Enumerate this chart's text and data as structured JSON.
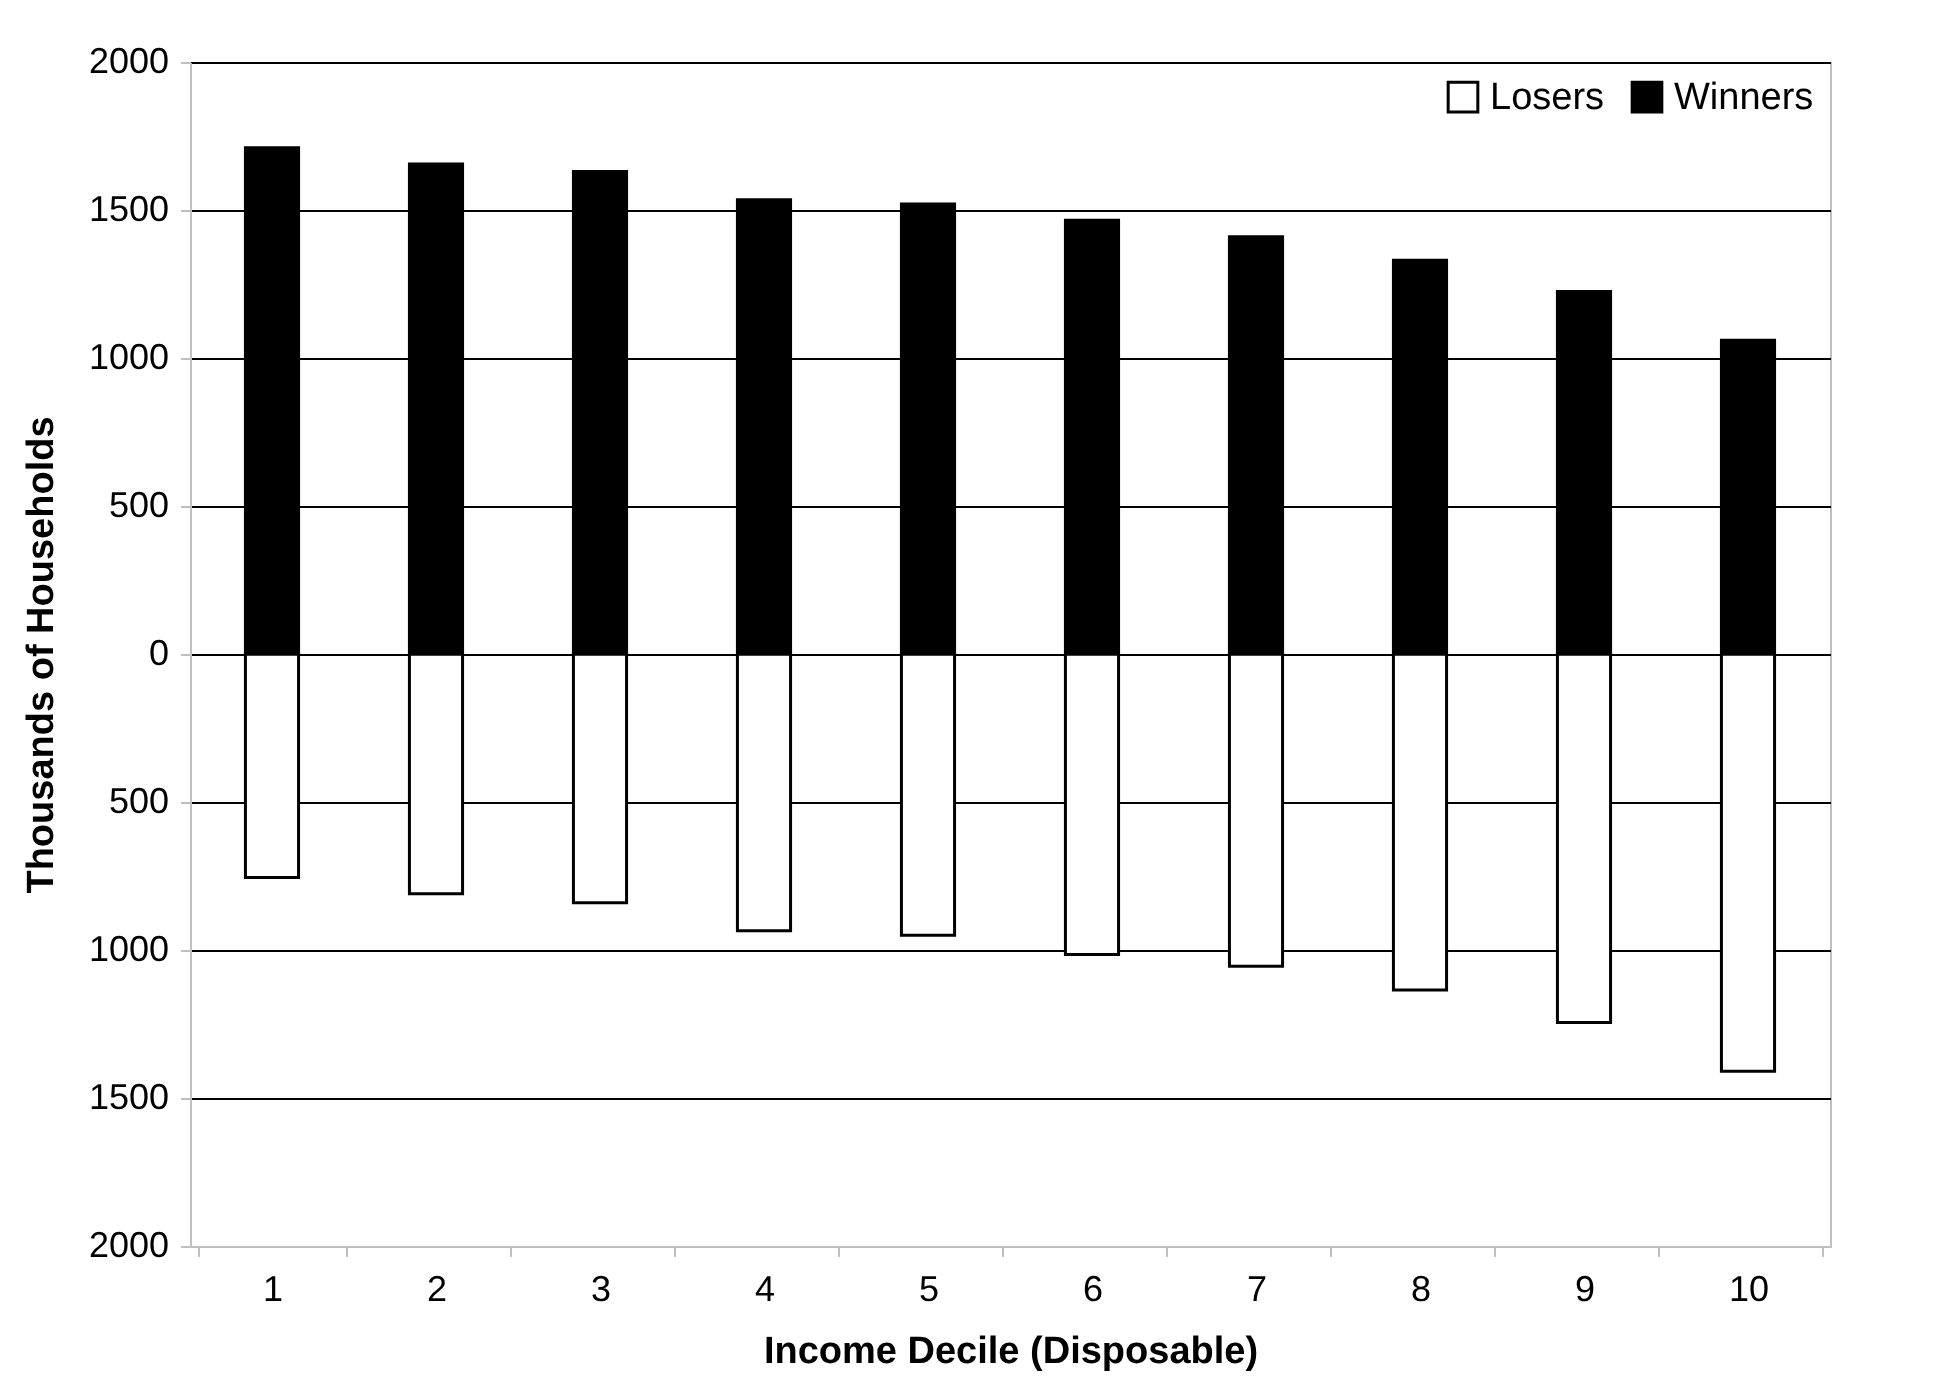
{
  "chart_data": {
    "type": "bar",
    "xlabel": "Income Decile (Disposable)",
    "ylabel": "Thousands of Households",
    "categories": [
      "1",
      "2",
      "3",
      "4",
      "5",
      "6",
      "7",
      "8",
      "9",
      "10"
    ],
    "series": [
      {
        "name": "Losers",
        "color": "#ffffff",
        "values": [
          -755,
          -810,
          -840,
          -935,
          -950,
          -1015,
          -1055,
          -1135,
          -1245,
          -1410
        ]
      },
      {
        "name": "Winners",
        "color": "#000000",
        "values": [
          1710,
          1655,
          1630,
          1535,
          1520,
          1465,
          1410,
          1330,
          1225,
          1060
        ]
      }
    ],
    "ylim": [
      -2000,
      2000
    ],
    "yticks": [
      {
        "value": -2000,
        "label": "2000"
      },
      {
        "value": -1500,
        "label": "1500"
      },
      {
        "value": -1000,
        "label": "1000"
      },
      {
        "value": -500,
        "label": "500"
      },
      0,
      500,
      1000,
      1500,
      2000
    ],
    "stacked": true,
    "grid": "y",
    "legend": "top right"
  }
}
